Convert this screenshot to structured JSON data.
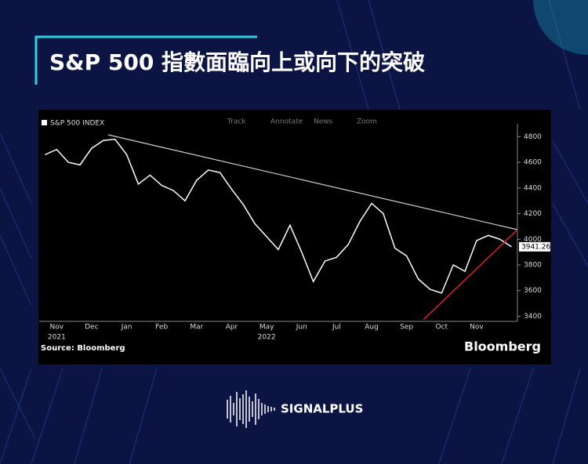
{
  "header": {
    "title": "S&P 500 指數面臨向上或向下的突破"
  },
  "toolbar": [
    "Track",
    "Annotate",
    "News",
    "Zoom"
  ],
  "chart_data": {
    "type": "line",
    "legend": "S&P 500 INDEX",
    "source": "Source: Bloomberg",
    "brand": "Bloomberg",
    "year_labels": [
      "2021",
      "2022"
    ],
    "categories": [
      null,
      "Nov",
      null,
      null,
      "Dec",
      null,
      null,
      "Jan",
      null,
      null,
      "Feb",
      null,
      null,
      "Mar",
      null,
      null,
      "Apr",
      null,
      null,
      "May",
      null,
      null,
      "Jun",
      null,
      null,
      "Jul",
      null,
      null,
      "Aug",
      null,
      null,
      "Sep",
      null,
      null,
      "Oct",
      null,
      null,
      "Nov",
      null,
      null,
      null
    ],
    "series": [
      {
        "name": "S&P 500 INDEX",
        "color": "#ffffff",
        "values": [
          4660,
          4700,
          4600,
          4580,
          4710,
          4770,
          4780,
          4660,
          4430,
          4500,
          4420,
          4380,
          4300,
          4460,
          4540,
          4520,
          4390,
          4270,
          4120,
          4020,
          3920,
          4110,
          3900,
          3670,
          3830,
          3860,
          3960,
          4140,
          4280,
          4200,
          3930,
          3870,
          3690,
          3610,
          3580,
          3800,
          3750,
          3990,
          4030,
          4000,
          3941.26
        ]
      }
    ],
    "ylim": [
      3360,
      4900
    ],
    "yticks": [
      3400,
      3600,
      3800,
      4000,
      4200,
      4400,
      4600,
      4800
    ]
  },
  "footer": {
    "brand": "SIGNALPLUS"
  }
}
